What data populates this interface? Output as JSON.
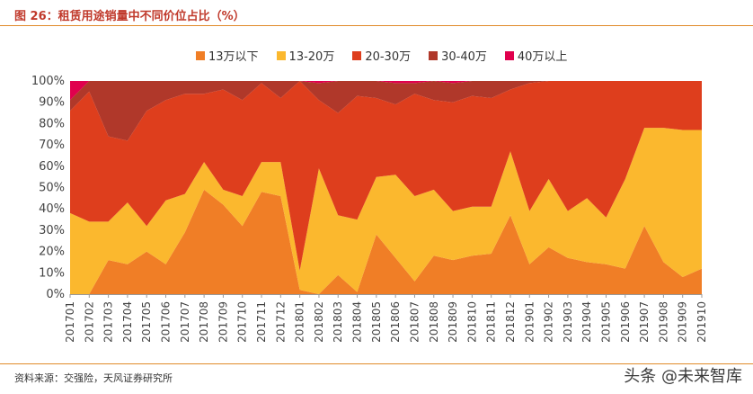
{
  "figure": {
    "title": "图 26：租赁用途销量中不同价位占比（%）",
    "source": "资料来源：交强险，天风证券研究所",
    "watermark": "头条 @未来智库"
  },
  "colors": {
    "13万以下": "#f07e26",
    "13-20万": "#fbb82e",
    "20-30万": "#de3e1d",
    "30-40万": "#b0382a",
    "40万以上": "#e0004d"
  },
  "chart_data": {
    "type": "area",
    "stacked": true,
    "x": [
      "201701",
      "201702",
      "201703",
      "201704",
      "201705",
      "201706",
      "201707",
      "201708",
      "201709",
      "201710",
      "201711",
      "201712",
      "201801",
      "201802",
      "201803",
      "201804",
      "201805",
      "201806",
      "201807",
      "201808",
      "201809",
      "201810",
      "201811",
      "201812",
      "201901",
      "201902",
      "201903",
      "201904",
      "201905",
      "201906",
      "201907",
      "201908",
      "201909",
      "201910"
    ],
    "ylim": [
      0,
      100
    ],
    "yticks": [
      "0%",
      "10%",
      "20%",
      "30%",
      "40%",
      "50%",
      "60%",
      "70%",
      "80%",
      "90%",
      "100%"
    ],
    "legend_position": "top",
    "series": [
      {
        "name": "13万以下",
        "values": [
          0,
          0,
          16,
          14,
          20,
          14,
          29,
          49,
          42,
          32,
          48,
          46,
          2,
          0,
          9,
          1,
          28,
          17,
          6,
          18,
          16,
          18,
          19,
          37,
          14,
          22,
          17,
          15,
          14,
          12,
          32,
          15,
          8,
          12
        ]
      },
      {
        "name": "13-20万",
        "values": [
          38,
          34,
          18,
          29,
          12,
          30,
          18,
          13,
          7,
          14,
          14,
          16,
          9,
          59,
          28,
          34,
          27,
          39,
          40,
          31,
          23,
          23,
          22,
          30,
          25,
          32,
          22,
          30,
          22,
          42,
          46,
          63,
          69,
          65
        ]
      },
      {
        "name": "20-30万",
        "values": [
          48,
          61,
          40,
          29,
          54,
          47,
          47,
          32,
          47,
          45,
          37,
          30,
          89,
          32,
          48,
          58,
          37,
          33,
          48,
          42,
          51,
          52,
          51,
          29,
          60,
          46,
          61,
          55,
          64,
          46,
          22,
          22,
          23,
          23
        ]
      },
      {
        "name": "30-40万",
        "values": [
          5,
          5,
          26,
          28,
          14,
          9,
          6,
          6,
          4,
          9,
          1,
          8,
          0,
          8,
          15,
          7,
          8,
          10,
          5,
          9,
          9,
          7,
          8,
          4,
          1,
          0,
          0,
          0,
          0,
          0,
          0,
          0,
          0,
          0
        ]
      },
      {
        "name": "40万以上",
        "values": [
          9,
          0,
          0,
          0,
          0,
          0,
          0,
          0,
          0,
          0,
          0,
          0,
          0,
          1,
          0,
          0,
          0,
          1,
          1,
          0,
          1,
          0,
          0,
          0,
          0,
          0,
          0,
          0,
          0,
          0,
          0,
          0,
          0,
          0
        ]
      }
    ]
  }
}
